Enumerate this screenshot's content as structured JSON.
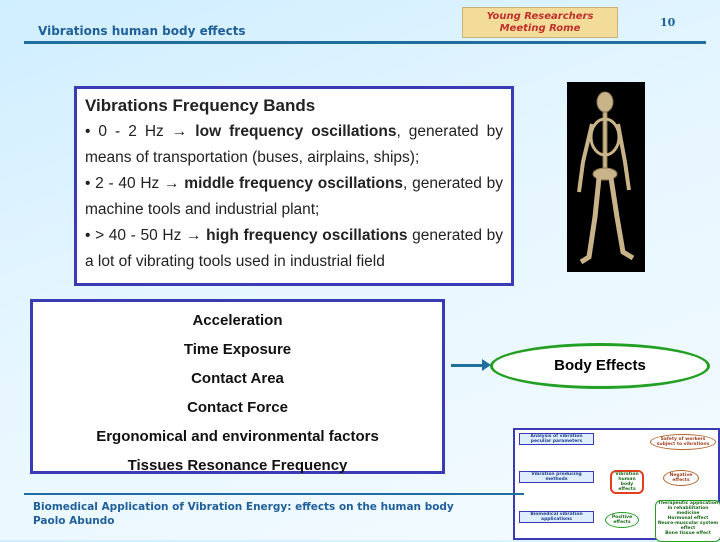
{
  "header": {
    "title": "Vibrations human body effects",
    "logo": [
      "Young Researchers",
      "Meeting Rome"
    ],
    "page_number": "10"
  },
  "bands": {
    "title": "Vibrations Frequency Bands",
    "items": [
      {
        "range": "• 0 - 2 Hz → ",
        "bold": "low frequency oscillations",
        "rest": ", generated by means of transportation (buses,  airplains, ships);"
      },
      {
        "range": "• 2 - 40 Hz → ",
        "bold": "middle frequency oscillations",
        "rest": ", generated by machine tools and industrial plant;"
      },
      {
        "range": "• > 40 - 50 Hz → ",
        "bold": "high frequency oscillations",
        "rest": " generated by a lot of vibrating tools used in industrial field"
      }
    ]
  },
  "factors": [
    "Acceleration",
    "Time Exposure",
    "Contact Area",
    "Contact Force",
    "Ergonomical and environmental factors",
    "Tissues Resonance Frequency"
  ],
  "result": "Body Effects",
  "footer": {
    "line1": "Biomedical Application of Vibration Energy: effects on the human body",
    "line2": "Paolo Abundo"
  },
  "diagram": {
    "analysis": "Analysis  of vibration peculiar parameters",
    "producing": "Vibration producing methods",
    "biomedical": "Biomedical vibration applications",
    "center": "Vibration human body effects",
    "safety": "Safety of workers subject to vibrations",
    "negative": "Negative effects",
    "positive": "Positive effects",
    "therapeutic": [
      "Therapeutic application in rehabilitation medicine",
      "Hormonal effect",
      "Neuro-muscular system effect",
      "Bone tissue effect"
    ]
  },
  "colors": {
    "accent": "#1f6e9e",
    "box_border": "#3a3ab4",
    "ellipse": "#23a023"
  }
}
